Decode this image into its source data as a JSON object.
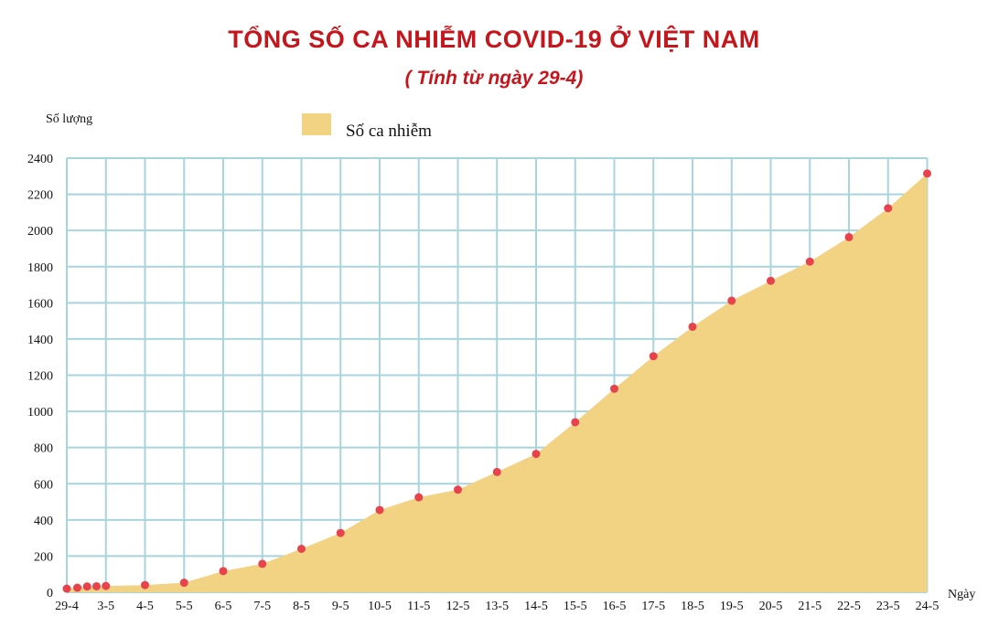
{
  "chart_data": {
    "type": "area",
    "title": "TỔNG SỐ CA NHIỄM COVID-19 Ở VIỆT NAM",
    "subtitle": "( Tính từ ngày 29-4)",
    "ylabel": "Số lượng",
    "xlabel": "Ngày",
    "ylim": [
      0,
      2400
    ],
    "yticks": [
      0,
      200,
      400,
      600,
      800,
      1000,
      1200,
      1400,
      1600,
      1800,
      2000,
      2200,
      2400
    ],
    "grid": true,
    "legend_position": "top-center",
    "fill_color": "#f2d383",
    "point_color": "#e8434c",
    "grid_color": "#a8d4dc",
    "categories": [
      "29-4",
      "3-5",
      "4-5",
      "5-5",
      "6-5",
      "7-5",
      "8-5",
      "9-5",
      "10-5",
      "11-5",
      "12-5",
      "13-5",
      "14-5",
      "15-5",
      "16-5",
      "17-5",
      "18-5",
      "19-5",
      "20-5",
      "21-5",
      "22-5",
      "23-5",
      "24-5"
    ],
    "series": [
      {
        "name": "Số ca nhiễm",
        "points": [
          {
            "x": 0,
            "y": 20
          },
          {
            "x": 0.27,
            "y": 25
          },
          {
            "x": 0.52,
            "y": 32
          },
          {
            "x": 0.76,
            "y": 33
          },
          {
            "x": 1,
            "y": 35
          },
          {
            "x": 2,
            "y": 40
          },
          {
            "x": 3,
            "y": 53
          },
          {
            "x": 4,
            "y": 117
          },
          {
            "x": 5,
            "y": 157
          },
          {
            "x": 6,
            "y": 240
          },
          {
            "x": 7,
            "y": 328
          },
          {
            "x": 8,
            "y": 455
          },
          {
            "x": 9,
            "y": 525
          },
          {
            "x": 10,
            "y": 567
          },
          {
            "x": 11,
            "y": 665
          },
          {
            "x": 12,
            "y": 765
          },
          {
            "x": 13,
            "y": 940
          },
          {
            "x": 14,
            "y": 1125
          },
          {
            "x": 15,
            "y": 1305
          },
          {
            "x": 16,
            "y": 1468
          },
          {
            "x": 17,
            "y": 1612
          },
          {
            "x": 18,
            "y": 1722
          },
          {
            "x": 19,
            "y": 1828
          },
          {
            "x": 20,
            "y": 1963
          },
          {
            "x": 21,
            "y": 2123
          },
          {
            "x": 22,
            "y": 2315
          }
        ]
      }
    ]
  }
}
